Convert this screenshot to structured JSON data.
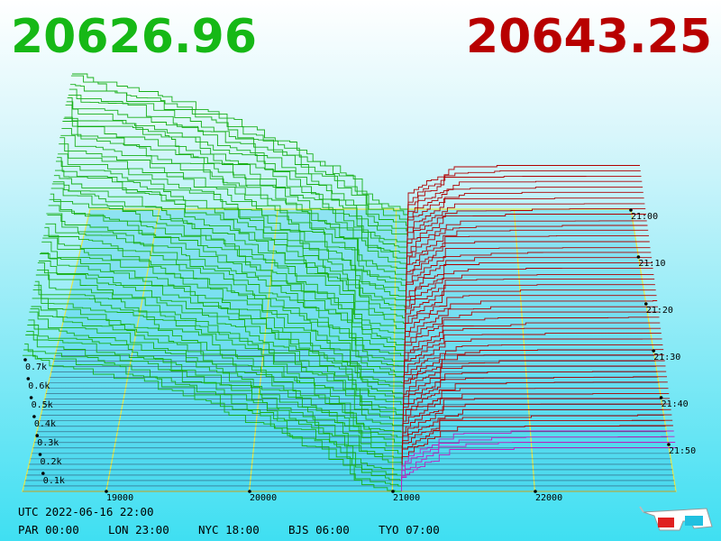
{
  "bid_price": "20626.96",
  "ask_price": "20643.25",
  "depth_labels": [
    "0.7k",
    "0.6k",
    "0.5k",
    "0.4k",
    "0.3k",
    "0.2k",
    "0.1k"
  ],
  "price_labels": [
    "19000",
    "20000",
    "21000",
    "22000"
  ],
  "time_labels": [
    "21:00",
    "21:10",
    "21:20",
    "21:30",
    "21:40",
    "21:50"
  ],
  "utc": "UTC 2022-06-16 22:00",
  "clocks": [
    "PAR 00:00",
    "LON 23:00",
    "NYC 18:00",
    "BJS 06:00",
    "TYO 07:00"
  ]
}
